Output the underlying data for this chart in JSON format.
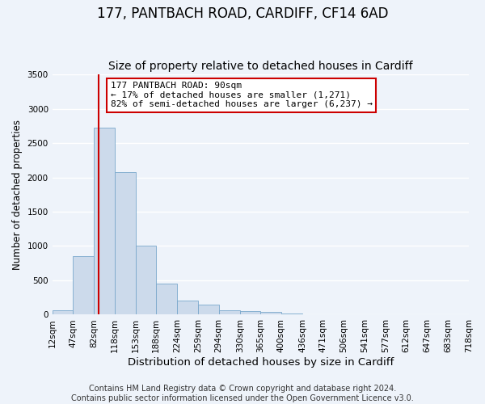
{
  "title": "177, PANTBACH ROAD, CARDIFF, CF14 6AD",
  "subtitle": "Size of property relative to detached houses in Cardiff",
  "xlabel": "Distribution of detached houses by size in Cardiff",
  "ylabel": "Number of detached properties",
  "bar_color": "#ccdaeb",
  "bar_edge_color": "#7aa8cc",
  "background_color": "#eef3fa",
  "grid_color": "#ffffff",
  "vline_x": 90,
  "vline_color": "#cc0000",
  "annotation_text": "177 PANTBACH ROAD: 90sqm\n← 17% of detached houses are smaller (1,271)\n82% of semi-detached houses are larger (6,237) →",
  "annotation_box_color": "#ffffff",
  "annotation_box_edge_color": "#cc0000",
  "bin_edges": [
    12,
    47,
    82,
    118,
    153,
    188,
    224,
    259,
    294,
    330,
    365,
    400,
    436,
    471,
    506,
    541,
    577,
    612,
    647,
    683,
    718
  ],
  "bin_values": [
    60,
    850,
    2720,
    2080,
    1010,
    455,
    210,
    145,
    70,
    55,
    35,
    20,
    0,
    0,
    0,
    0,
    0,
    0,
    0,
    0
  ],
  "ylim": [
    0,
    3500
  ],
  "yticks": [
    0,
    500,
    1000,
    1500,
    2000,
    2500,
    3000,
    3500
  ],
  "footer_text": "Contains HM Land Registry data © Crown copyright and database right 2024.\nContains public sector information licensed under the Open Government Licence v3.0.",
  "title_fontsize": 12,
  "subtitle_fontsize": 10,
  "xlabel_fontsize": 9.5,
  "ylabel_fontsize": 8.5,
  "tick_fontsize": 7.5,
  "footer_fontsize": 7
}
